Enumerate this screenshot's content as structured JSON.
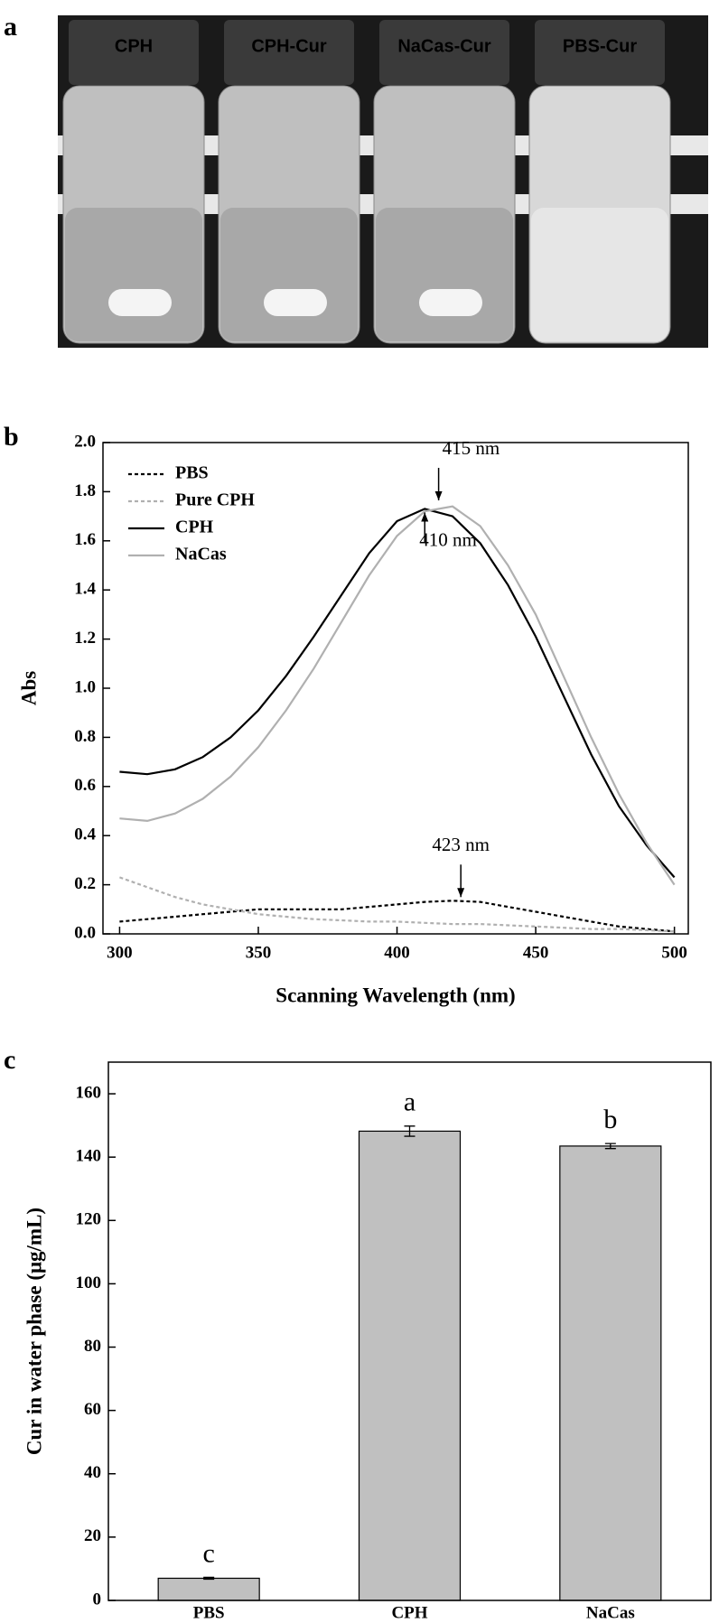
{
  "panel_labels": [
    "a",
    "b",
    "c"
  ],
  "photo": {
    "vials": [
      "CPH",
      "CPH-Cur",
      "NaCas-Cur",
      "PBS-Cur"
    ]
  },
  "chart_data": [
    {
      "type": "line",
      "xlabel": "Scanning Wavelength (nm)",
      "ylabel": "Abs",
      "x": [
        300,
        310,
        320,
        330,
        340,
        350,
        360,
        370,
        380,
        390,
        400,
        410,
        420,
        430,
        440,
        450,
        460,
        470,
        480,
        490,
        500
      ],
      "series": [
        {
          "name": "PBS",
          "color": "#000000",
          "linestyle": "dashed",
          "values": [
            0.05,
            0.06,
            0.07,
            0.08,
            0.09,
            0.1,
            0.1,
            0.1,
            0.1,
            0.11,
            0.12,
            0.13,
            0.135,
            0.13,
            0.11,
            0.09,
            0.07,
            0.05,
            0.03,
            0.02,
            0.01
          ]
        },
        {
          "name": "Pure CPH",
          "color": "#b0b0b0",
          "linestyle": "dashed",
          "values": [
            0.23,
            0.19,
            0.15,
            0.12,
            0.1,
            0.08,
            0.07,
            0.06,
            0.055,
            0.05,
            0.05,
            0.045,
            0.04,
            0.04,
            0.035,
            0.03,
            0.025,
            0.02,
            0.02,
            0.015,
            0.01
          ]
        },
        {
          "name": "CPH",
          "color": "#000000",
          "linestyle": "solid",
          "values": [
            0.66,
            0.65,
            0.67,
            0.72,
            0.8,
            0.91,
            1.05,
            1.21,
            1.38,
            1.55,
            1.68,
            1.73,
            1.7,
            1.59,
            1.42,
            1.21,
            0.97,
            0.73,
            0.52,
            0.36,
            0.23
          ]
        },
        {
          "name": "NaCas",
          "color": "#b0b0b0",
          "linestyle": "solid",
          "values": [
            0.47,
            0.46,
            0.49,
            0.55,
            0.64,
            0.76,
            0.91,
            1.08,
            1.27,
            1.46,
            1.62,
            1.72,
            1.74,
            1.66,
            1.5,
            1.3,
            1.05,
            0.8,
            0.57,
            0.37,
            0.2
          ]
        }
      ],
      "annotations": [
        {
          "text": "415 nm",
          "x": 415,
          "y": 1.75
        },
        {
          "text": "410 nm",
          "x": 410,
          "y": 1.73
        },
        {
          "text": "423 nm",
          "x": 423,
          "y": 0.135
        }
      ],
      "xlim": [
        294,
        505
      ],
      "xticks": [
        300,
        350,
        400,
        450,
        500
      ],
      "ylim": [
        0,
        2.0
      ],
      "yticks": [
        {
          "value": 0,
          "label": "0.0"
        },
        {
          "value": 0.2,
          "label": "0.2"
        },
        {
          "value": 0.4,
          "label": "0.4"
        },
        {
          "value": 0.6,
          "label": "0.6"
        },
        {
          "value": 0.8,
          "label": "0.8"
        },
        {
          "value": 1.0,
          "label": "1.0"
        },
        {
          "value": 1.2,
          "label": "1.2"
        },
        {
          "value": 1.4,
          "label": "1.4"
        },
        {
          "value": 1.6,
          "label": "1.6"
        },
        {
          "value": 1.8,
          "label": "1.8"
        },
        {
          "value": 2.0,
          "label": "2.0"
        }
      ],
      "legend": "upper-left"
    },
    {
      "type": "bar",
      "ylabel": "Cur in water phase (μg/mL)",
      "categories": [
        "PBS",
        "CPH",
        "NaCas"
      ],
      "values": [
        7,
        148.2,
        143.5
      ],
      "errors": [
        0.3,
        1.6,
        0.8
      ],
      "annotations": [
        "c",
        "a",
        "b"
      ],
      "color": "#c0c0c0",
      "ylim": [
        0,
        170
      ],
      "yticks": [
        0,
        20,
        40,
        60,
        80,
        100,
        120,
        140,
        160
      ]
    }
  ]
}
